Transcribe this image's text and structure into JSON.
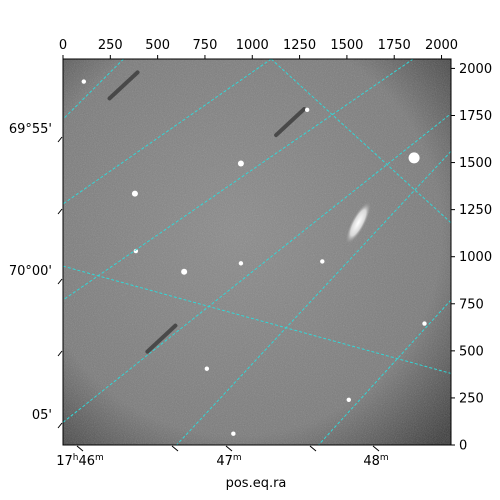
{
  "chart_data": {
    "type": "image",
    "title": "",
    "xlabel": "pos.eq.ra",
    "ylabel": "",
    "image_colormap": "grayscale",
    "grid": true,
    "grid_color": "#33d6d6",
    "pixel_axes": {
      "x_top": {
        "range": [
          0,
          2050
        ],
        "ticks": [
          0,
          250,
          500,
          750,
          1000,
          1250,
          1500,
          1750,
          2000
        ]
      },
      "y_right": {
        "range": [
          0,
          2050
        ],
        "ticks": [
          0,
          250,
          500,
          750,
          1000,
          1250,
          1500,
          1750,
          2000
        ]
      }
    },
    "world_axes": {
      "ra_bottom": {
        "label": "pos.eq.ra",
        "ticks": [
          {
            "hours": "17",
            "minutes": "46"
          },
          {
            "hours": "",
            "minutes": "47"
          },
          {
            "hours": "",
            "minutes": "48"
          }
        ]
      },
      "dec_left": {
        "ticks": [
          "69°55'",
          "70°00'",
          "05'"
        ]
      }
    },
    "objects": [
      {
        "kind": "galaxy",
        "x": 1560,
        "y": 1180
      },
      {
        "kind": "star",
        "x": 1855,
        "y": 1525
      },
      {
        "kind": "star",
        "x": 380,
        "y": 1335
      },
      {
        "kind": "star",
        "x": 940,
        "y": 1495
      },
      {
        "kind": "star",
        "x": 640,
        "y": 920
      },
      {
        "kind": "star",
        "x": 385,
        "y": 1030
      },
      {
        "kind": "star",
        "x": 940,
        "y": 965
      },
      {
        "kind": "star",
        "x": 1910,
        "y": 645
      },
      {
        "kind": "star",
        "x": 760,
        "y": 405
      },
      {
        "kind": "star",
        "x": 1510,
        "y": 240
      },
      {
        "kind": "star",
        "x": 900,
        "y": 60
      },
      {
        "kind": "star",
        "x": 1370,
        "y": 975
      },
      {
        "kind": "star",
        "x": 110,
        "y": 1930
      },
      {
        "kind": "star",
        "x": 1290,
        "y": 1780
      }
    ],
    "streaks": [
      {
        "x": 320,
        "y": 1910
      },
      {
        "x": 1200,
        "y": 1715
      },
      {
        "x": 520,
        "y": 565
      }
    ],
    "grid_lines": {
      "ra_lines": [
        {
          "x0": 1100,
          "y0": 2050,
          "x1": 0,
          "y1": 1280
        },
        {
          "x0": 1850,
          "y0": 2050,
          "x1": 0,
          "y1": 770
        },
        {
          "x0": 2050,
          "y0": 1560,
          "x1": 600,
          "y1": 0
        },
        {
          "x0": 2050,
          "y0": 770,
          "x1": 1350,
          "y1": 0
        }
      ],
      "dec_lines": [
        {
          "x0": 320,
          "y0": 2050,
          "x1": 0,
          "y1": 1730
        },
        {
          "x0": 1100,
          "y0": 2050,
          "x1": 2050,
          "y1": 1180
        },
        {
          "x0": 0,
          "y0": 950,
          "x1": 2050,
          "y1": 380
        },
        {
          "x0": 0,
          "y0": 120,
          "x1": 2050,
          "y1": 1760
        }
      ]
    }
  }
}
